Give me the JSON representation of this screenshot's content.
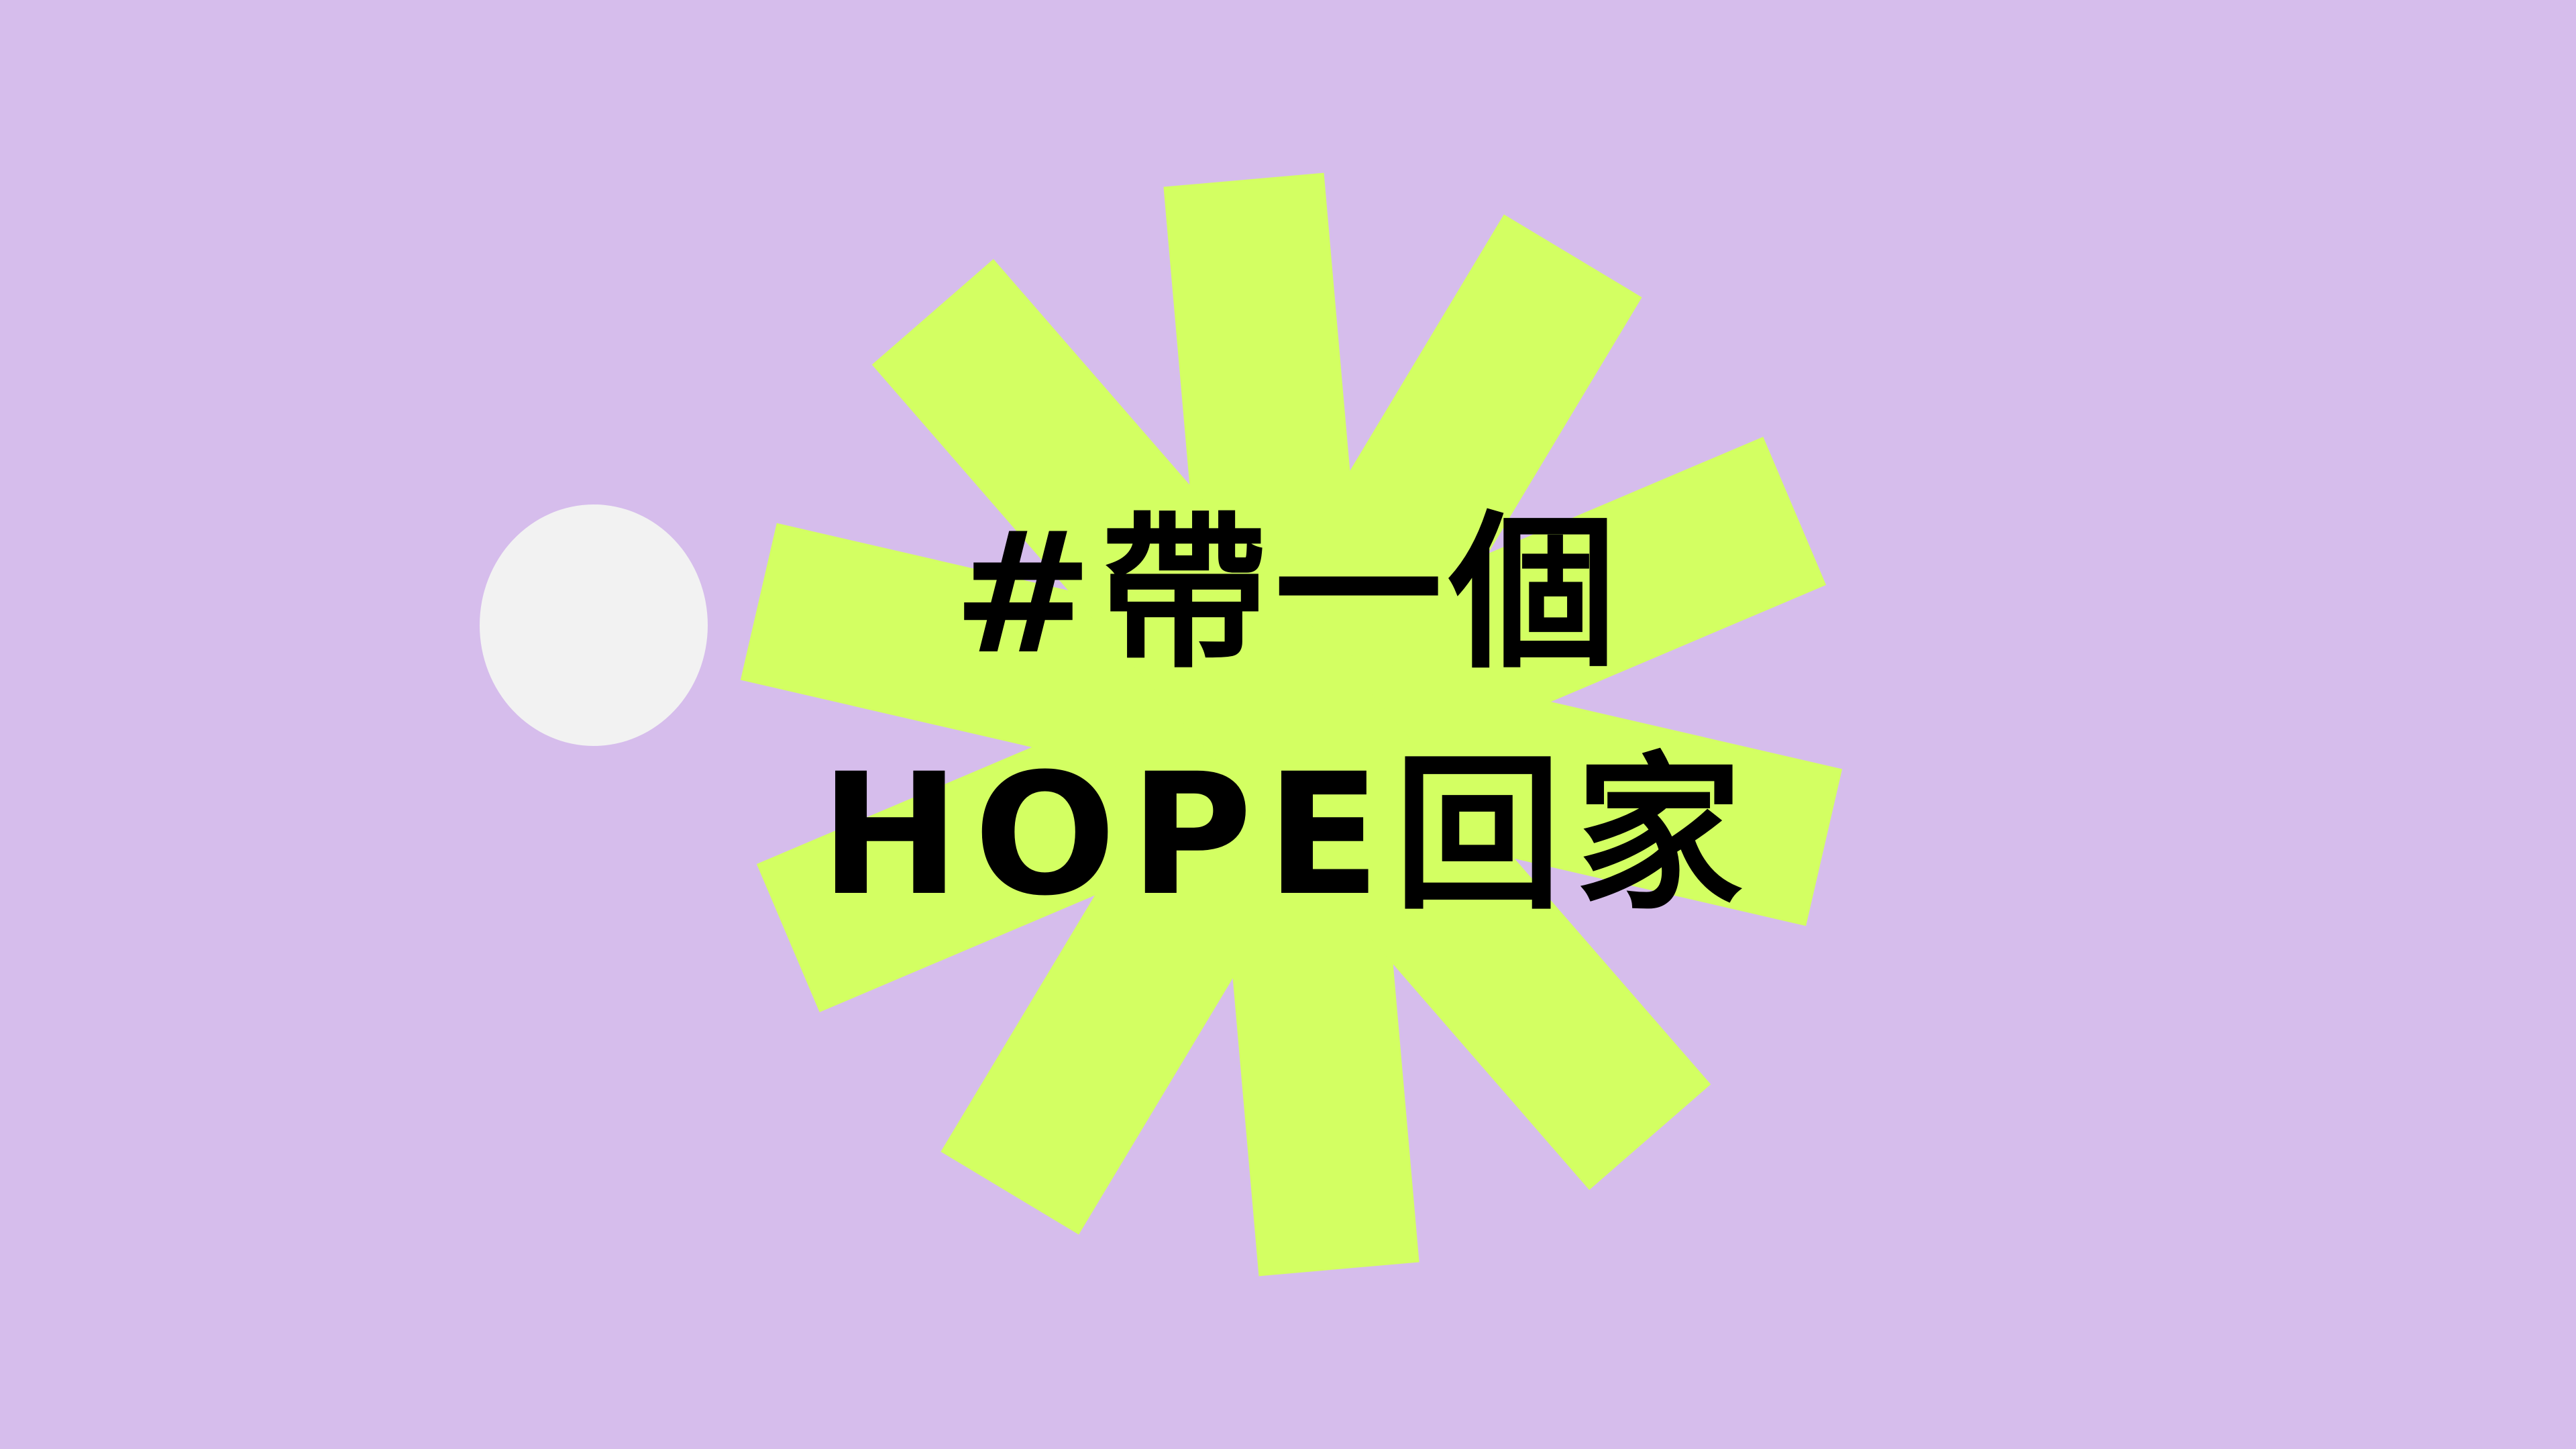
{
  "canvas": {
    "background_color": "#d6bdec"
  },
  "graphic": {
    "asterisk_color": "#d3ff62",
    "asterisk_arm_count": 5,
    "dot_color": "#f2f2f2"
  },
  "headline": {
    "line1": "#帶一個",
    "line2": "HOPE回家",
    "text_color": "#000000"
  }
}
